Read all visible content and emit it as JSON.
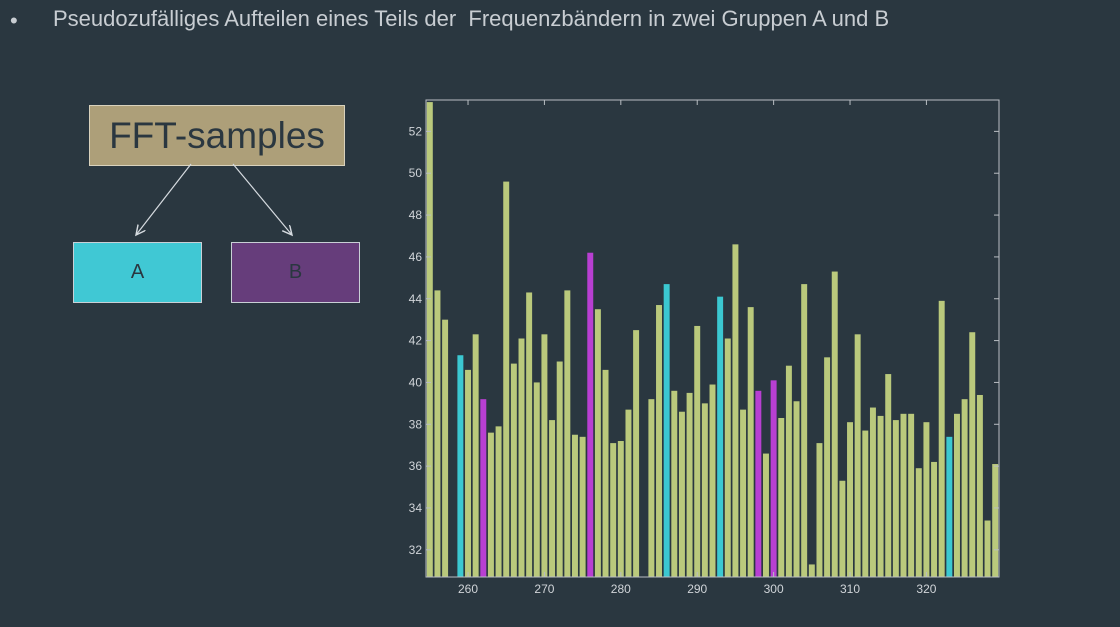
{
  "bullet": "•",
  "heading": "Pseudozufälliges Aufteilen eines Teils der  Frequenzbändern in zwei Gruppen A und B",
  "diagram": {
    "source_label": "FFT-samples",
    "group_a_label": "A",
    "group_b_label": "B"
  },
  "colors": {
    "background": "#2a3740",
    "bar_default": "#bac97c",
    "bar_group_a": "#3bc8d1",
    "bar_group_b": "#b83fd2",
    "axis": "#b9bec3"
  },
  "chart_data": {
    "type": "bar",
    "title": "",
    "xlabel": "",
    "ylabel": "",
    "xlim": [
      254.5,
      329.5
    ],
    "ylim": [
      30.7,
      53.5
    ],
    "x_ticks": [
      260,
      270,
      280,
      290,
      300,
      310,
      320
    ],
    "y_ticks": [
      32,
      34,
      36,
      38,
      40,
      42,
      44,
      46,
      48,
      50,
      52
    ],
    "grid": false,
    "x": [
      255,
      256,
      257,
      258,
      259,
      260,
      261,
      262,
      263,
      264,
      265,
      266,
      267,
      268,
      269,
      270,
      271,
      272,
      273,
      274,
      275,
      276,
      277,
      278,
      279,
      280,
      281,
      282,
      283,
      284,
      285,
      286,
      287,
      288,
      289,
      290,
      291,
      292,
      293,
      294,
      295,
      296,
      297,
      298,
      299,
      300,
      301,
      302,
      303,
      304,
      305,
      306,
      307,
      308,
      309,
      310,
      311,
      312,
      313,
      314,
      315,
      316,
      317,
      318,
      319,
      320,
      321,
      322,
      323,
      324,
      325,
      326,
      327,
      328,
      329
    ],
    "values": [
      53.4,
      44.4,
      43.0,
      30.7,
      41.3,
      40.6,
      42.3,
      39.2,
      37.6,
      37.9,
      49.6,
      40.9,
      42.1,
      44.3,
      40.0,
      42.3,
      38.2,
      41.0,
      44.4,
      37.5,
      37.4,
      46.2,
      43.5,
      40.6,
      37.1,
      37.2,
      38.7,
      42.5,
      30.7,
      39.2,
      43.7,
      44.7,
      39.6,
      38.6,
      39.5,
      42.7,
      39.0,
      39.9,
      44.1,
      42.1,
      46.6,
      38.7,
      43.6,
      39.6,
      36.6,
      40.1,
      38.3,
      40.8,
      39.1,
      44.7,
      31.3,
      37.1,
      41.2,
      45.3,
      35.3,
      38.1,
      42.3,
      37.7,
      38.8,
      38.4,
      40.4,
      38.2,
      38.5,
      38.5,
      35.9,
      38.1,
      36.2,
      43.9,
      37.4,
      38.5,
      39.2,
      42.4,
      39.4,
      33.4,
      36.1
    ],
    "groups": [
      "",
      "",
      "",
      "",
      "A",
      "",
      "",
      "B",
      "",
      "",
      "",
      "",
      "",
      "",
      "",
      "",
      "",
      "",
      "",
      "",
      "",
      "B",
      "",
      "",
      "",
      "",
      "",
      "",
      "",
      "",
      "",
      "A",
      "",
      "",
      "",
      "",
      "",
      "",
      "A",
      "",
      "",
      "",
      "",
      "B",
      "",
      "B",
      "",
      "",
      "",
      "",
      "",
      "",
      "",
      "",
      "",
      "",
      "",
      "",
      "",
      "",
      "",
      "",
      "",
      "",
      "",
      "",
      "",
      "",
      "A",
      "",
      "",
      "",
      "",
      "",
      ""
    ],
    "x_range_end_value": 38.4
  }
}
